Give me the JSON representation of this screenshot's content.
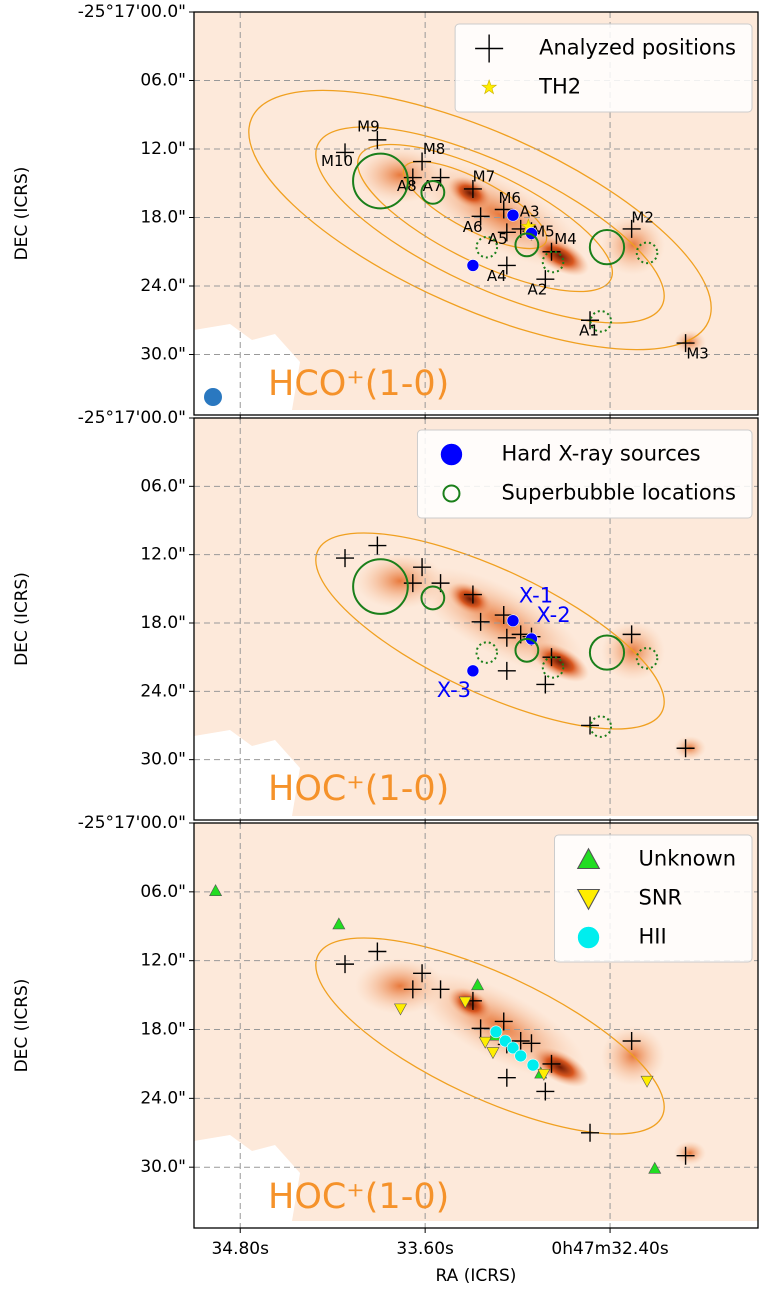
{
  "chart_data": [
    {
      "type": "scatter",
      "ylabel": "DEC (ICRS)",
      "panel_label": "HCO⁺(1-0)",
      "ylim": [
        35.3,
        0
      ],
      "xlim": [
        35.1,
        31.44
      ],
      "yticks": [
        {
          "value": 0,
          "label": "-25°17'00.0\""
        },
        {
          "value": 6,
          "label": "06.0\""
        },
        {
          "value": 12,
          "label": "12.0\""
        },
        {
          "value": 18,
          "label": "18.0\""
        },
        {
          "value": 24,
          "label": "24.0\""
        },
        {
          "value": 30,
          "label": "30.0\""
        }
      ],
      "xticks": [
        34.8,
        33.6,
        32.4
      ],
      "grid": true,
      "legend": "upper right",
      "series": [
        {
          "name": "Analyzed positions",
          "marker": "plus",
          "color": "#000000",
          "labels": [
            "M9",
            "M10",
            "M8",
            "A8",
            "A7",
            "M7",
            "M6",
            "A6",
            "A3",
            "A5",
            "M5",
            "M4",
            "A4",
            "A2",
            "M2",
            "A1",
            "M3"
          ],
          "x": [
            33.91,
            34.12,
            33.62,
            33.68,
            33.5,
            33.29,
            33.09,
            33.24,
            32.98,
            33.07,
            32.91,
            32.78,
            33.07,
            32.82,
            32.26,
            32.53,
            31.91
          ],
          "values": [
            11.2,
            12.3,
            13.1,
            14.5,
            14.5,
            15.5,
            17.3,
            17.9,
            19.0,
            19.3,
            19.2,
            21.0,
            22.2,
            23.4,
            19.0,
            27.0,
            29.0
          ]
        },
        {
          "name": "TH2",
          "marker": "star",
          "color": "#ffee00",
          "x": [
            32.93
          ],
          "values": [
            18.8
          ]
        },
        {
          "marker": "circle",
          "color": "#0000ff",
          "x": [
            33.03,
            32.91,
            33.29
          ],
          "values": [
            17.8,
            19.4,
            22.2
          ]
        },
        {
          "marker": "ring",
          "color": "#1a7f1a",
          "x": [
            33.89,
            33.55,
            32.94,
            32.42
          ],
          "values": [
            14.8,
            15.8,
            20.4,
            20.6
          ],
          "sizes": [
            2.4,
            1.0,
            1.0,
            1.5
          ]
        },
        {
          "marker": "ring-dotted",
          "color": "#1a7f1a",
          "x": [
            33.2,
            32.77,
            32.16,
            32.46
          ],
          "values": [
            20.6,
            21.9,
            21.1,
            27.1
          ],
          "sizes": [
            0.9,
            0.9,
            0.9,
            0.9
          ]
        }
      ]
    },
    {
      "type": "scatter",
      "ylabel": "DEC (ICRS)",
      "panel_label": "HOC⁺(1-0)",
      "ylim": [
        35.3,
        0
      ],
      "xlim": [
        35.1,
        31.44
      ],
      "yticks": [
        {
          "value": 0,
          "label": "-25°17'00.0\""
        },
        {
          "value": 6,
          "label": "06.0\""
        },
        {
          "value": 12,
          "label": "12.0\""
        },
        {
          "value": 18,
          "label": "18.0\""
        },
        {
          "value": 24,
          "label": "24.0\""
        },
        {
          "value": 30,
          "label": "30.0\""
        }
      ],
      "xticks": [
        34.8,
        33.6,
        32.4
      ],
      "grid": true,
      "legend": "upper right",
      "series": [
        {
          "marker": "plus",
          "color": "#000000",
          "x": [
            33.91,
            34.12,
            33.62,
            33.68,
            33.5,
            33.29,
            33.09,
            33.24,
            32.98,
            33.07,
            32.91,
            32.78,
            33.07,
            32.82,
            32.26,
            32.53,
            31.91
          ],
          "values": [
            11.2,
            12.3,
            13.1,
            14.5,
            14.5,
            15.5,
            17.3,
            17.9,
            19.0,
            19.3,
            19.2,
            21.0,
            22.2,
            23.4,
            19.0,
            27.0,
            29.0
          ]
        },
        {
          "name": "Hard X-ray sources",
          "marker": "circle",
          "color": "#0000ff",
          "labels": [
            "X-1",
            "X-2",
            "X-3"
          ],
          "x": [
            33.03,
            32.91,
            33.29
          ],
          "values": [
            17.8,
            19.4,
            22.2
          ]
        },
        {
          "name": "Superbubble locations",
          "marker": "ring",
          "color": "#1a7f1a",
          "x": [
            33.89,
            33.55,
            32.94,
            32.42
          ],
          "values": [
            14.8,
            15.8,
            20.4,
            20.6
          ],
          "sizes": [
            2.4,
            1.0,
            1.0,
            1.5
          ]
        },
        {
          "marker": "ring-dotted",
          "color": "#1a7f1a",
          "x": [
            33.2,
            32.77,
            32.16,
            32.46
          ],
          "values": [
            20.6,
            21.9,
            21.1,
            27.1
          ],
          "sizes": [
            0.9,
            0.9,
            0.9,
            0.9
          ]
        }
      ]
    },
    {
      "type": "scatter",
      "ylabel": "DEC (ICRS)",
      "xlabel": "RA (ICRS)",
      "panel_label": "HOC⁺(1-0)",
      "ylim": [
        35.3,
        0
      ],
      "xlim": [
        35.1,
        31.44
      ],
      "yticks": [
        {
          "value": 0,
          "label": "-25°17'00.0\""
        },
        {
          "value": 6,
          "label": "06.0\""
        },
        {
          "value": 12,
          "label": "12.0\""
        },
        {
          "value": 18,
          "label": "18.0\""
        },
        {
          "value": 24,
          "label": "24.0\""
        },
        {
          "value": 30,
          "label": "30.0\""
        }
      ],
      "xticks": [
        {
          "value": 34.8,
          "label": "34.80s"
        },
        {
          "value": 33.6,
          "label": "33.60s"
        },
        {
          "value": 32.4,
          "label": "0h47m32.40s"
        }
      ],
      "grid": true,
      "legend": "upper right",
      "series": [
        {
          "marker": "plus",
          "color": "#000000",
          "x": [
            33.91,
            34.12,
            33.62,
            33.68,
            33.5,
            33.29,
            33.09,
            33.24,
            32.98,
            33.07,
            32.91,
            32.78,
            33.07,
            32.82,
            32.26,
            32.53,
            31.91
          ],
          "values": [
            11.2,
            12.3,
            13.1,
            14.5,
            14.5,
            15.5,
            17.3,
            17.9,
            19.0,
            19.3,
            19.2,
            21.0,
            22.2,
            23.4,
            19.0,
            27.0,
            29.0
          ]
        },
        {
          "name": "Unknown",
          "marker": "triangle-up",
          "color": "#22dd22",
          "x": [
            34.96,
            34.16,
            33.26,
            33.15,
            32.85,
            32.11
          ],
          "values": [
            5.9,
            8.8,
            14.1,
            18.5,
            21.8,
            30.1
          ]
        },
        {
          "name": "SNR",
          "marker": "triangle-down",
          "color": "#ffee00",
          "x": [
            33.76,
            33.34,
            33.21,
            33.16,
            32.83,
            32.16
          ],
          "values": [
            16.2,
            15.6,
            19.1,
            20.0,
            21.9,
            22.5
          ]
        },
        {
          "name": "HII",
          "marker": "circle",
          "color": "#00eeee",
          "x": [
            33.14,
            33.08,
            33.03,
            32.98,
            32.9
          ],
          "values": [
            18.2,
            19.0,
            19.6,
            20.3,
            21.1
          ]
        }
      ]
    }
  ]
}
